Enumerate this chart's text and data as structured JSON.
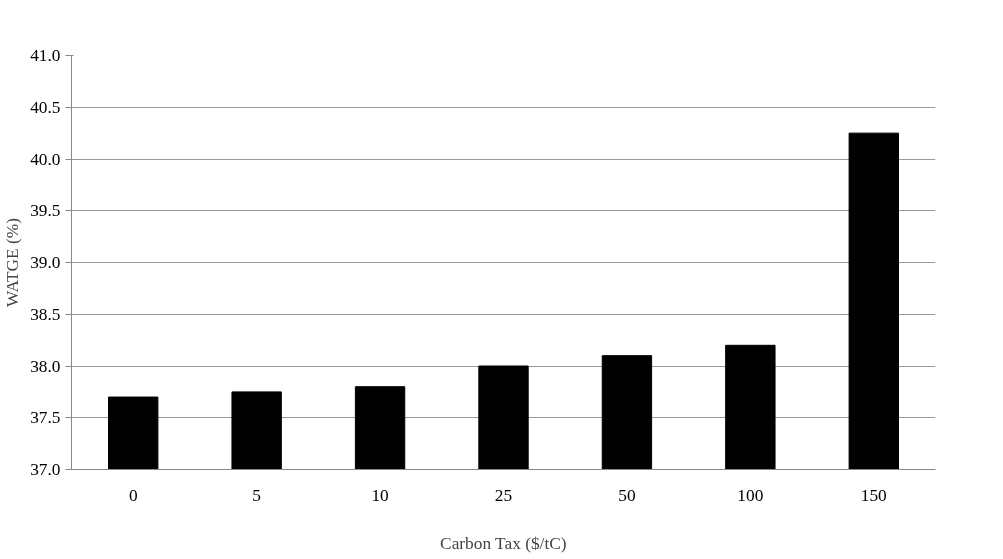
{
  "chart_data": {
    "type": "bar",
    "xlabel": "Carbon Tax ($/tC)",
    "ylabel": "WATGE (%)",
    "categories": [
      "0",
      "5",
      "10",
      "25",
      "50",
      "100",
      "150"
    ],
    "values": [
      37.7,
      37.75,
      37.8,
      38.0,
      38.1,
      38.2,
      40.25
    ],
    "color": "#000000",
    "ylim": [
      37.0,
      41.0
    ],
    "yticks": [
      {
        "value": 37.0,
        "label": "37.0"
      },
      {
        "value": 37.5,
        "label": "37.5"
      },
      {
        "value": 38.0,
        "label": "38.0"
      },
      {
        "value": 38.5,
        "label": "38.5"
      },
      {
        "value": 39.0,
        "label": "39.0"
      },
      {
        "value": 39.5,
        "label": "39.5"
      },
      {
        "value": 40.0,
        "label": "40.0"
      },
      {
        "value": 40.5,
        "label": "40.5"
      },
      {
        "value": 41.0,
        "label": "41.0"
      }
    ],
    "grid": "y"
  }
}
